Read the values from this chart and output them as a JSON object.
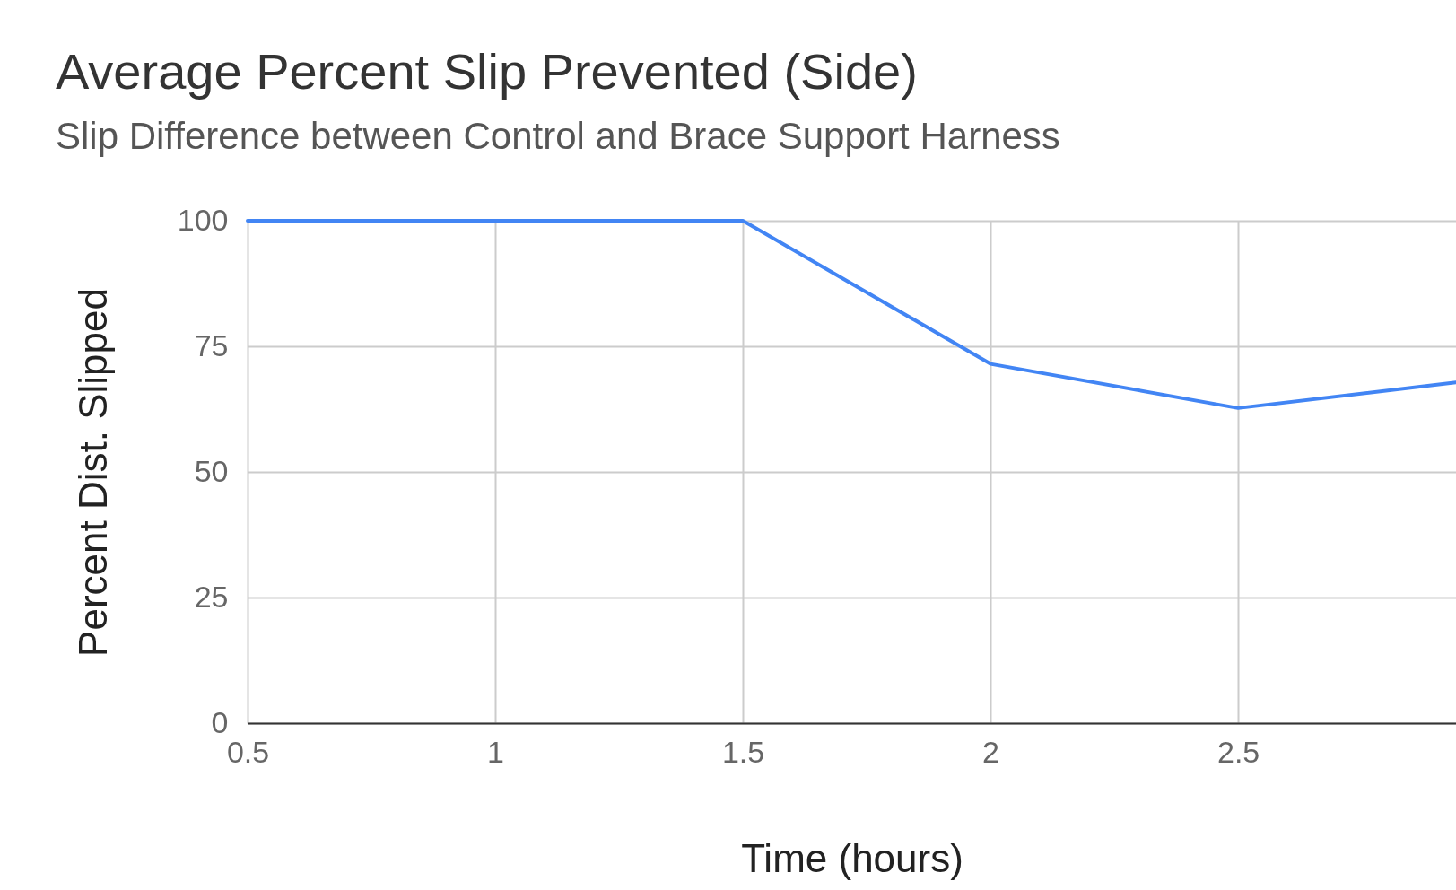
{
  "chart_data": {
    "type": "line",
    "title": "Average Percent Slip Prevented (Side)",
    "subtitle": "Slip Difference between Control and Brace Support Harness",
    "xlabel": "Time (hours)",
    "ylabel": "Percent Dist. Slipped",
    "x": [
      0.5,
      1,
      1.5,
      2,
      2.5,
      2.94
    ],
    "series": [
      {
        "color": "#4285f4",
        "values": [
          100,
          100,
          100,
          71.5,
          62.7,
          67.8
        ]
      }
    ],
    "xlim": [
      0.5,
      2.94
    ],
    "xticks": [
      0.5,
      1,
      1.5,
      2,
      2.5
    ],
    "ylim": [
      0,
      100
    ],
    "yticks": [
      0,
      25,
      50,
      75,
      100
    ],
    "grid": true,
    "marker": "none",
    "line_style": "solid"
  }
}
